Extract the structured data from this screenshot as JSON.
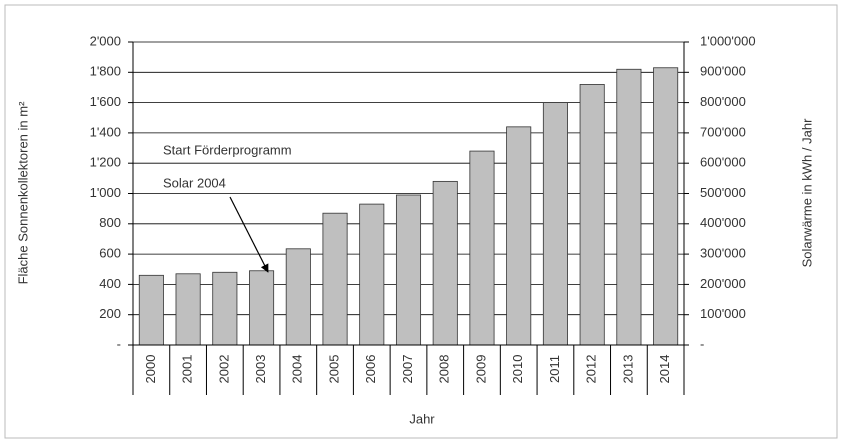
{
  "chart_data": {
    "type": "bar",
    "categories": [
      "2000",
      "2001",
      "2002",
      "2003",
      "2004",
      "2005",
      "2006",
      "2007",
      "2008",
      "2009",
      "2010",
      "2011",
      "2012",
      "2013",
      "2014"
    ],
    "values": [
      460,
      470,
      480,
      490,
      635,
      870,
      930,
      990,
      1080,
      1280,
      1440,
      1600,
      1720,
      1820,
      1830
    ],
    "color": "#bfbfbf",
    "ylim": [
      0,
      2000
    ],
    "yticks": [
      {
        "value": 0,
        "label": "-"
      },
      200,
      400,
      600,
      800,
      {
        "value": 1000,
        "label": "1'000"
      },
      {
        "value": 1200,
        "label": "1'200"
      },
      {
        "value": 1400,
        "label": "1'400"
      },
      {
        "value": 1600,
        "label": "1'600"
      },
      {
        "value": 1800,
        "label": "1'800"
      },
      {
        "value": 2000,
        "label": "2'000"
      }
    ],
    "y2lim": [
      0,
      1000000
    ],
    "y2ticks": [
      {
        "value": 0,
        "label": "-"
      },
      {
        "value": 100000,
        "label": "100'000"
      },
      {
        "value": 200000,
        "label": "200'000"
      },
      {
        "value": 300000,
        "label": "300'000"
      },
      {
        "value": 400000,
        "label": "400'000"
      },
      {
        "value": 500000,
        "label": "500'000"
      },
      {
        "value": 600000,
        "label": "600'000"
      },
      {
        "value": 700000,
        "label": "700'000"
      },
      {
        "value": 800000,
        "label": "800'000"
      },
      {
        "value": 900000,
        "label": "900'000"
      },
      {
        "value": 1000000,
        "label": "1'000'000"
      }
    ],
    "grid": true,
    "xlabel": "Jahr",
    "ylabel": "Fläche Sonnenkollektoren in m²",
    "y2label": "Solarwärme in kWh / Jahr",
    "annotations": [
      "Start Förderprogramm",
      "Solar 2004"
    ]
  }
}
